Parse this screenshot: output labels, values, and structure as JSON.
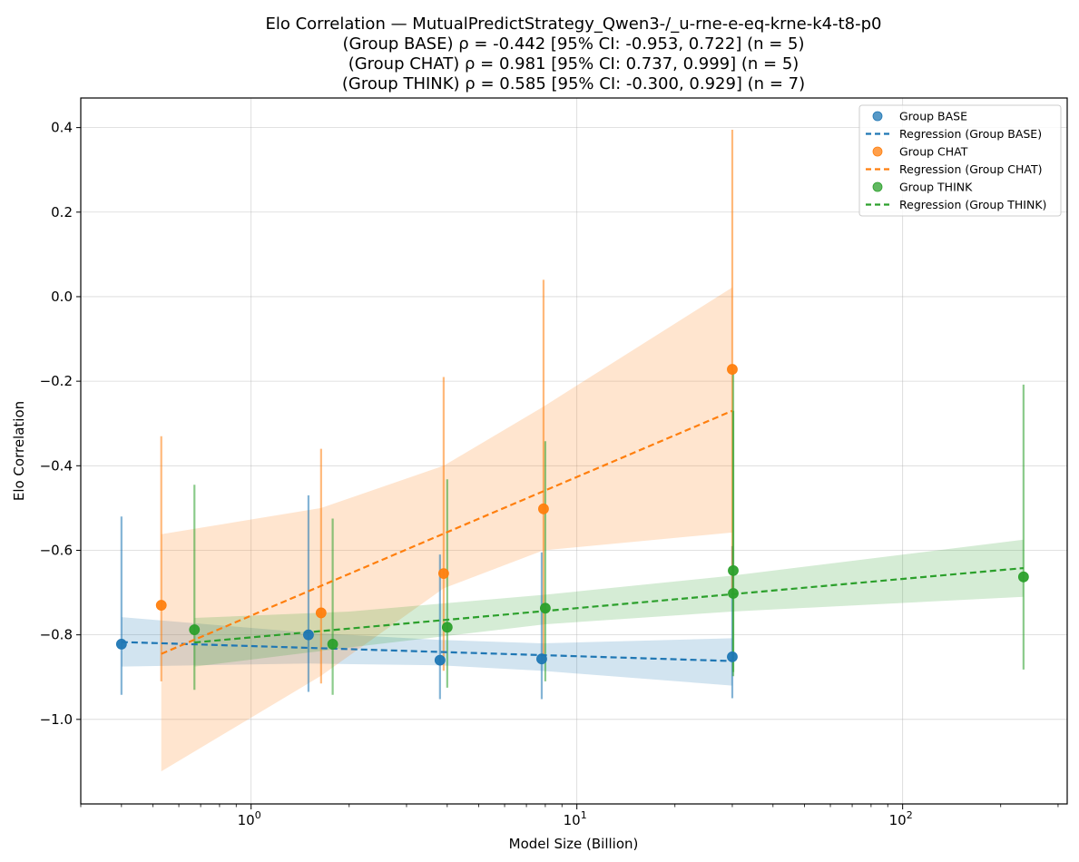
{
  "chart_data": {
    "type": "scatter",
    "x_scale": "log",
    "title_lines": [
      "Elo Correlation — MutualPredictStrategy_Qwen3-/_u-rne-e-eq-krne-k4-t8-p0",
      "(Group BASE) ρ = -0.442 [95% CI: -0.953, 0.722] (n = 5)",
      "(Group CHAT) ρ = 0.981 [95% CI: 0.737, 0.999] (n = 5)",
      "(Group THINK) ρ = 0.585 [95% CI: -0.300, 0.929] (n = 7)"
    ],
    "xlabel": "Model Size (Billion)",
    "ylabel": "Elo Correlation",
    "xlim": [
      0.3,
      320
    ],
    "ylim": [
      -1.2,
      0.47
    ],
    "x_ticks": [
      {
        "value": 1,
        "base": "10",
        "exp": "0"
      },
      {
        "value": 10,
        "base": "10",
        "exp": "1"
      },
      {
        "value": 100,
        "base": "10",
        "exp": "2"
      }
    ],
    "y_ticks": [
      {
        "value": 0.4,
        "label": "0.4"
      },
      {
        "value": 0.2,
        "label": "0.2"
      },
      {
        "value": 0.0,
        "label": "0.0"
      },
      {
        "value": -0.2,
        "label": "−0.2"
      },
      {
        "value": -0.4,
        "label": "−0.4"
      },
      {
        "value": -0.6,
        "label": "−0.6"
      },
      {
        "value": -0.8,
        "label": "−0.8"
      },
      {
        "value": -1.0,
        "label": "−1.0"
      }
    ],
    "grid": true,
    "legend_position": "top-right",
    "legend": [
      {
        "label": "Group BASE",
        "kind": "marker",
        "color": "#1f77b4"
      },
      {
        "label": "Regression (Group BASE)",
        "kind": "line",
        "color": "#1f77b4"
      },
      {
        "label": "Group CHAT",
        "kind": "marker",
        "color": "#ff7f0e"
      },
      {
        "label": "Regression (Group CHAT)",
        "kind": "line",
        "color": "#ff7f0e"
      },
      {
        "label": "Group THINK",
        "kind": "marker",
        "color": "#2ca02c"
      },
      {
        "label": "Regression (Group THINK)",
        "kind": "line",
        "color": "#2ca02c"
      }
    ],
    "series": [
      {
        "name": "Group BASE",
        "color": "#1f77b4",
        "points": [
          {
            "x": 0.4,
            "y": -0.822,
            "lo": -0.942,
            "hi": -0.52
          },
          {
            "x": 1.5,
            "y": -0.8,
            "lo": -0.935,
            "hi": -0.47
          },
          {
            "x": 3.8,
            "y": -0.86,
            "lo": -0.952,
            "hi": -0.61
          },
          {
            "x": 7.8,
            "y": -0.857,
            "lo": -0.952,
            "hi": -0.605
          },
          {
            "x": 30,
            "y": -0.852,
            "lo": -0.95,
            "hi": -0.59
          }
        ],
        "regression": {
          "x0": 0.4,
          "x1": 30,
          "y0": -0.817,
          "y1": -0.862
        },
        "band": [
          {
            "x": 0.4,
            "lo": -0.875,
            "hi": -0.758
          },
          {
            "x": 1.5,
            "lo": -0.868,
            "hi": -0.795
          },
          {
            "x": 3.8,
            "lo": -0.872,
            "hi": -0.812
          },
          {
            "x": 7.8,
            "lo": -0.885,
            "hi": -0.82
          },
          {
            "x": 30,
            "lo": -0.92,
            "hi": -0.808
          }
        ]
      },
      {
        "name": "Group CHAT",
        "color": "#ff7f0e",
        "points": [
          {
            "x": 0.53,
            "y": -0.73,
            "lo": -0.91,
            "hi": -0.33
          },
          {
            "x": 1.64,
            "y": -0.748,
            "lo": -0.915,
            "hi": -0.36
          },
          {
            "x": 3.9,
            "y": -0.655,
            "lo": -0.885,
            "hi": -0.19
          },
          {
            "x": 7.9,
            "y": -0.502,
            "lo": -0.86,
            "hi": 0.04
          },
          {
            "x": 30,
            "y": -0.172,
            "lo": -0.7,
            "hi": 0.395
          }
        ],
        "regression": {
          "x0": 0.53,
          "x1": 30,
          "y0": -0.845,
          "y1": -0.27
        },
        "band": [
          {
            "x": 0.53,
            "lo": -1.123,
            "hi": -0.562
          },
          {
            "x": 1.64,
            "lo": -0.897,
            "hi": -0.5
          },
          {
            "x": 3.9,
            "lo": -0.69,
            "hi": -0.4
          },
          {
            "x": 7.9,
            "lo": -0.6,
            "hi": -0.26
          },
          {
            "x": 30,
            "lo": -0.558,
            "hi": 0.022
          }
        ]
      },
      {
        "name": "Group THINK",
        "color": "#2ca02c",
        "points": [
          {
            "x": 0.67,
            "y": -0.788,
            "lo": -0.93,
            "hi": -0.445
          },
          {
            "x": 1.78,
            "y": -0.822,
            "lo": -0.942,
            "hi": -0.525
          },
          {
            "x": 4.0,
            "y": -0.782,
            "lo": -0.925,
            "hi": -0.432
          },
          {
            "x": 8.0,
            "y": -0.737,
            "lo": -0.91,
            "hi": -0.342
          },
          {
            "x": 30.2,
            "y": -0.648,
            "lo": -0.888,
            "hi": -0.175
          },
          {
            "x": 30.2,
            "y": -0.702,
            "lo": -0.898,
            "hi": -0.27
          },
          {
            "x": 235,
            "y": -0.663,
            "lo": -0.882,
            "hi": -0.208
          }
        ],
        "regression": {
          "x0": 0.67,
          "x1": 235,
          "y0": -0.818,
          "y1": -0.642
        },
        "band": [
          {
            "x": 0.67,
            "lo": -0.875,
            "hi": -0.76
          },
          {
            "x": 2.0,
            "lo": -0.83,
            "hi": -0.745
          },
          {
            "x": 8.0,
            "lo": -0.775,
            "hi": -0.705
          },
          {
            "x": 30,
            "lo": -0.745,
            "hi": -0.66
          },
          {
            "x": 235,
            "lo": -0.71,
            "hi": -0.575
          }
        ]
      }
    ]
  }
}
